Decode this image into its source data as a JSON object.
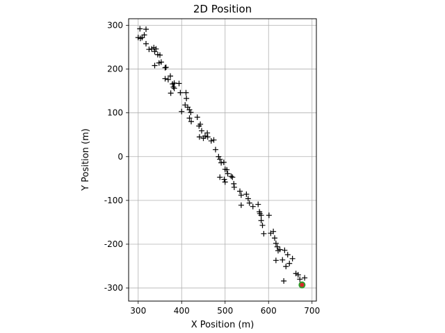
{
  "chart_data": {
    "type": "scatter",
    "title": "2D Position",
    "xlabel": "X Position (m)",
    "ylabel": "Y Position (m)",
    "xlim": [
      278,
      710
    ],
    "ylim": [
      -330,
      315
    ],
    "xticks": [
      300,
      400,
      500,
      600,
      700
    ],
    "yticks": [
      300,
      200,
      100,
      0,
      -100,
      -200,
      -300
    ],
    "grid": true,
    "legend": "none",
    "series": [
      {
        "marker": "plus",
        "color": "#000000",
        "points": [
          [
            304,
            292
          ],
          [
            318,
            291
          ],
          [
            300,
            272
          ],
          [
            305,
            270
          ],
          [
            309,
            272
          ],
          [
            314,
            278
          ],
          [
            318,
            258
          ],
          [
            325,
            245
          ],
          [
            331,
            246
          ],
          [
            336,
            249
          ],
          [
            338,
            240
          ],
          [
            341,
            246
          ],
          [
            345,
            233
          ],
          [
            350,
            232
          ],
          [
            338,
            208
          ],
          [
            348,
            214
          ],
          [
            353,
            216
          ],
          [
            362,
            203
          ],
          [
            364,
            204
          ],
          [
            362,
            178
          ],
          [
            369,
            176
          ],
          [
            374,
            184
          ],
          [
            379,
            166
          ],
          [
            383,
            168
          ],
          [
            381,
            159
          ],
          [
            375,
            145
          ],
          [
            383,
            156
          ],
          [
            394,
            167
          ],
          [
            397,
            146
          ],
          [
            410,
            146
          ],
          [
            411,
            133
          ],
          [
            408,
            118
          ],
          [
            414,
            113
          ],
          [
            418,
            107
          ],
          [
            421,
            101
          ],
          [
            418,
            88
          ],
          [
            422,
            80
          ],
          [
            400,
            103
          ],
          [
            436,
            90
          ],
          [
            440,
            70
          ],
          [
            443,
            74
          ],
          [
            446,
            59
          ],
          [
            441,
            45
          ],
          [
            450,
            42
          ],
          [
            454,
            47
          ],
          [
            459,
            54
          ],
          [
            460,
            45
          ],
          [
            468,
            36
          ],
          [
            474,
            38
          ],
          [
            478,
            16
          ],
          [
            485,
            0
          ],
          [
            488,
            -6
          ],
          [
            491,
            -14
          ],
          [
            497,
            -13
          ],
          [
            500,
            -29
          ],
          [
            504,
            -30
          ],
          [
            506,
            -39
          ],
          [
            488,
            -47
          ],
          [
            498,
            -52
          ],
          [
            500,
            -58
          ],
          [
            514,
            -45
          ],
          [
            517,
            -47
          ],
          [
            520,
            -62
          ],
          [
            521,
            -70
          ],
          [
            534,
            -79
          ],
          [
            537,
            -88
          ],
          [
            549,
            -86
          ],
          [
            553,
            -96
          ],
          [
            537,
            -111
          ],
          [
            556,
            -106
          ],
          [
            564,
            -114
          ],
          [
            576,
            -109
          ],
          [
            579,
            -126
          ],
          [
            580,
            -130
          ],
          [
            583,
            -134
          ],
          [
            583,
            -146
          ],
          [
            586,
            -157
          ],
          [
            589,
            -176
          ],
          [
            601,
            -134
          ],
          [
            605,
            -175
          ],
          [
            611,
            -171
          ],
          [
            614,
            -186
          ],
          [
            617,
            -198
          ],
          [
            620,
            -206
          ],
          [
            622,
            -215
          ],
          [
            626,
            -212
          ],
          [
            617,
            -237
          ],
          [
            632,
            -236
          ],
          [
            637,
            -214
          ],
          [
            644,
            -224
          ],
          [
            648,
            -244
          ],
          [
            655,
            -233
          ],
          [
            663,
            -267
          ],
          [
            668,
            -270
          ],
          [
            672,
            -280
          ],
          [
            683,
            -277
          ],
          [
            635,
            -284
          ],
          [
            640,
            -251
          ]
        ]
      }
    ],
    "markers": [
      {
        "x": 677,
        "y": -293,
        "color": "#2ca02c",
        "shape": "circle"
      },
      {
        "x": 677,
        "y": -293,
        "color": "#d62728",
        "shape": "circle-small"
      }
    ]
  }
}
